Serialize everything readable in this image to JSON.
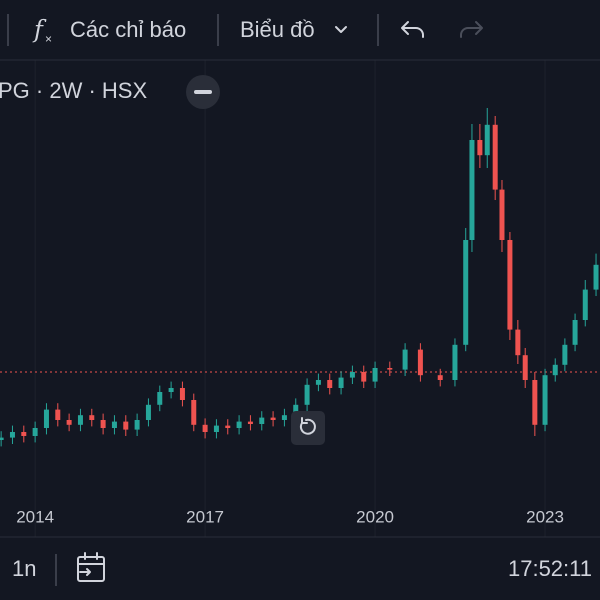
{
  "toolbar": {
    "indicators": "Các chỉ báo",
    "chart_type": "Biểu đồ"
  },
  "symbol": "PG · 2W · HSX",
  "chart_data": {
    "type": "candlestick",
    "x": [
      2013.4,
      2013.6,
      2013.8,
      2014.0,
      2014.2,
      2014.4,
      2014.6,
      2014.8,
      2015.0,
      2015.2,
      2015.4,
      2015.6,
      2015.8,
      2016.0,
      2016.2,
      2016.4,
      2016.6,
      2016.8,
      2017.0,
      2017.2,
      2017.4,
      2017.6,
      2017.8,
      2018.0,
      2018.2,
      2018.4,
      2018.6,
      2018.8,
      2019.0,
      2019.2,
      2019.4,
      2019.6,
      2019.8,
      2020.0,
      2020.26,
      2020.53,
      2020.8,
      2021.15,
      2021.41,
      2021.6,
      2021.71,
      2021.85,
      2021.98,
      2022.12,
      2022.24,
      2022.38,
      2022.52,
      2022.65,
      2022.82,
      2023.0,
      2023.18,
      2023.35,
      2023.53,
      2023.71,
      2023.9
    ],
    "open": [
      7.5,
      7.8,
      8.5,
      8,
      9,
      11.3,
      10,
      9.4,
      10.6,
      10,
      9,
      9.8,
      8.8,
      10,
      11.9,
      13.5,
      14,
      12.5,
      9.4,
      8.5,
      9.3,
      9,
      9.8,
      9.5,
      10.3,
      10,
      10.6,
      11.9,
      14.4,
      15,
      14,
      15.3,
      16,
      14.8,
      16.5,
      16.3,
      18.8,
      15.6,
      15,
      19.4,
      32.5,
      45,
      43.1,
      46.9,
      38.8,
      32.5,
      21.3,
      18.1,
      15,
      9.4,
      15.6,
      16.9,
      19.4,
      22.5,
      26.3
    ],
    "high": [
      8.6,
      9.3,
      9.3,
      9.8,
      12.1,
      12.1,
      10.8,
      11.4,
      11.4,
      10.8,
      10.6,
      10.6,
      10.8,
      12.7,
      14.3,
      14.8,
      14.8,
      13.3,
      10.2,
      10.1,
      10.1,
      10.6,
      10.6,
      11.1,
      11.1,
      11.4,
      12.7,
      15.2,
      15.8,
      15.8,
      16.1,
      16.8,
      16.8,
      17.3,
      17.3,
      19.6,
      19.6,
      16.4,
      20.2,
      34,
      47,
      47,
      49,
      48,
      40,
      33.5,
      22.5,
      19,
      16,
      16.4,
      17.7,
      20.2,
      23.3,
      27.5,
      30.8
    ],
    "low": [
      6.7,
      7,
      7.2,
      7.2,
      8.2,
      9.2,
      8.6,
      8.6,
      9.2,
      8.2,
      8.2,
      8,
      8,
      9.2,
      11.1,
      12.7,
      11.7,
      8.6,
      7.7,
      7.7,
      8.2,
      8.2,
      8.7,
      8.7,
      9.2,
      9.2,
      9.8,
      11.1,
      13.6,
      13.2,
      13.2,
      14.5,
      14,
      14,
      15.5,
      15.5,
      14.8,
      14.2,
      14.2,
      18.6,
      31,
      41.5,
      41.5,
      37.5,
      31,
      20,
      17,
      14,
      8,
      8.6,
      14.8,
      16.1,
      18.6,
      21.7,
      25.5
    ],
    "close": [
      7.8,
      8.5,
      8,
      9,
      11.3,
      10,
      9.4,
      10.6,
      10,
      9,
      9.8,
      8.8,
      10,
      11.9,
      13.5,
      14,
      12.5,
      9.4,
      8.5,
      9.3,
      9,
      9.8,
      9.5,
      10.3,
      10,
      10.6,
      11.9,
      14.4,
      15,
      14,
      15.3,
      16,
      14.8,
      16.5,
      16.3,
      18.8,
      15.6,
      15,
      19.4,
      32.5,
      45,
      43.1,
      46.9,
      38.8,
      32.5,
      21.3,
      18.1,
      15,
      9.4,
      15.6,
      16.9,
      19.4,
      22.5,
      26.3,
      29.4
    ],
    "xlim": [
      2013.38,
      2023.97
    ],
    "ylim": [
      0,
      55
    ],
    "xticks": [
      2014,
      2017,
      2020,
      2023
    ],
    "up_color": "#26a69a",
    "down_color": "#ef5350",
    "price_line": 16,
    "grid": true
  },
  "bottom_bar": {
    "range": "1n",
    "time": "17:52:11"
  }
}
